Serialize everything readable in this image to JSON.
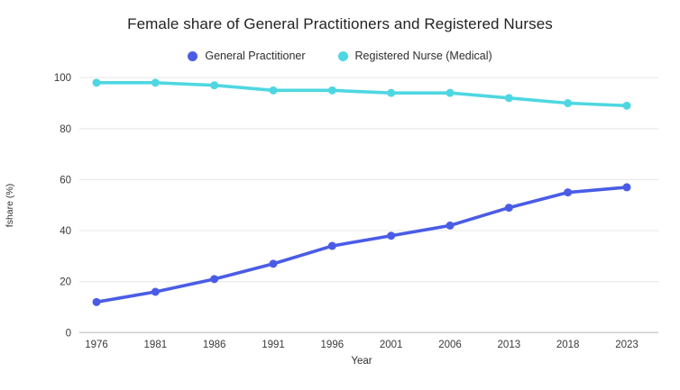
{
  "page": {
    "background": "#ffffff"
  },
  "chart_data": {
    "type": "line",
    "title": "Female share of General Practitioners and Registered Nurses",
    "categories": [
      "1976",
      "1981",
      "1986",
      "1991",
      "1996",
      "2001",
      "2006",
      "2013",
      "2018",
      "2023"
    ],
    "series": [
      {
        "name": "General Practitioner",
        "color": "#4a5ce6",
        "values": [
          12,
          16,
          21,
          27,
          34,
          38,
          42,
          49,
          55,
          57
        ]
      },
      {
        "name": "Registered Nurse (Medical)",
        "color": "#4ed7e2",
        "values": [
          98,
          98,
          97,
          95,
          95,
          94,
          94,
          92,
          90,
          89
        ]
      }
    ],
    "xlabel": "Year",
    "ylabel": "fshare (%)",
    "ylim": [
      0,
      100
    ],
    "yticks": [
      0,
      20,
      40,
      60,
      80,
      100
    ],
    "grid": true,
    "legend_position": "top-center",
    "colors": {
      "gridline": "#e9e9e9",
      "axis_line": "#cfcfcf",
      "tick_label": "#3a3a3a",
      "axis_title": "#2f2f2f"
    }
  }
}
